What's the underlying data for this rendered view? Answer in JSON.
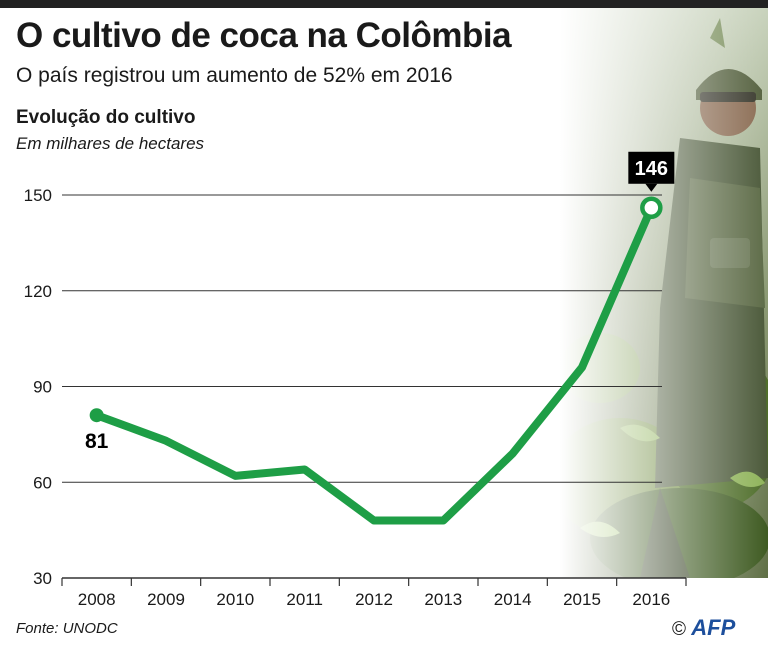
{
  "header": {
    "title": "O cultivo de coca na Colômbia",
    "subtitle": "O país registrou um aumento de 52% em 2016"
  },
  "section": {
    "title": "Evolução do cultivo",
    "subtitle": "Em milhares de hectares"
  },
  "footer": {
    "source": "Fonte: UNODC",
    "copyright": "©",
    "brand": "AFP"
  },
  "colors": {
    "line": "#1e9e46",
    "grid": "#333333",
    "text": "#1a1a1a"
  },
  "chart_data": {
    "type": "line",
    "title": "Evolução do cultivo",
    "subtitle": "Em milhares de hectares",
    "x": [
      "2008",
      "2009",
      "2010",
      "2011",
      "2012",
      "2013",
      "2014",
      "2015",
      "2016"
    ],
    "series": [
      {
        "values": [
          81,
          73,
          62,
          64,
          48,
          48,
          69,
          96,
          146
        ]
      }
    ],
    "ylim": [
      30,
      150
    ],
    "yticks": [
      30,
      60,
      90,
      120,
      150
    ],
    "data_labels": [
      {
        "x": "2008",
        "text": "81"
      },
      {
        "x": "2016",
        "text": "146"
      }
    ],
    "grid": "horizontal",
    "legend": "none"
  }
}
